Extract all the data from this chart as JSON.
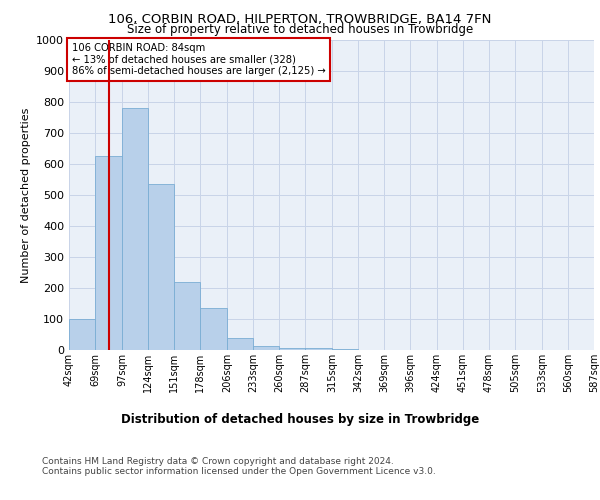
{
  "title1": "106, CORBIN ROAD, HILPERTON, TROWBRIDGE, BA14 7FN",
  "title2": "Size of property relative to detached houses in Trowbridge",
  "xlabel": "Distribution of detached houses by size in Trowbridge",
  "ylabel": "Number of detached properties",
  "bin_labels": [
    "42sqm",
    "69sqm",
    "97sqm",
    "124sqm",
    "151sqm",
    "178sqm",
    "206sqm",
    "233sqm",
    "260sqm",
    "287sqm",
    "315sqm",
    "342sqm",
    "369sqm",
    "396sqm",
    "424sqm",
    "451sqm",
    "478sqm",
    "505sqm",
    "533sqm",
    "560sqm",
    "587sqm"
  ],
  "bar_values": [
    100,
    625,
    780,
    535,
    220,
    135,
    40,
    13,
    7,
    5,
    2,
    1,
    1,
    0,
    0,
    0,
    0,
    0,
    0,
    0
  ],
  "bin_edges": [
    42,
    69,
    97,
    124,
    151,
    178,
    206,
    233,
    260,
    287,
    315,
    342,
    369,
    396,
    424,
    451,
    478,
    505,
    533,
    560,
    587
  ],
  "bar_color": "#b8d0ea",
  "bar_edgecolor": "#7aadd4",
  "redline_x": 84,
  "annotation_text": "106 CORBIN ROAD: 84sqm\n← 13% of detached houses are smaller (328)\n86% of semi-detached houses are larger (2,125) →",
  "annotation_box_color": "#ffffff",
  "annotation_box_edgecolor": "#cc0000",
  "redline_color": "#cc0000",
  "grid_color": "#c8d4e8",
  "background_color": "#eaf0f8",
  "ylim": [
    0,
    1000
  ],
  "yticks": [
    0,
    100,
    200,
    300,
    400,
    500,
    600,
    700,
    800,
    900,
    1000
  ],
  "footer1": "Contains HM Land Registry data © Crown copyright and database right 2024.",
  "footer2": "Contains public sector information licensed under the Open Government Licence v3.0."
}
